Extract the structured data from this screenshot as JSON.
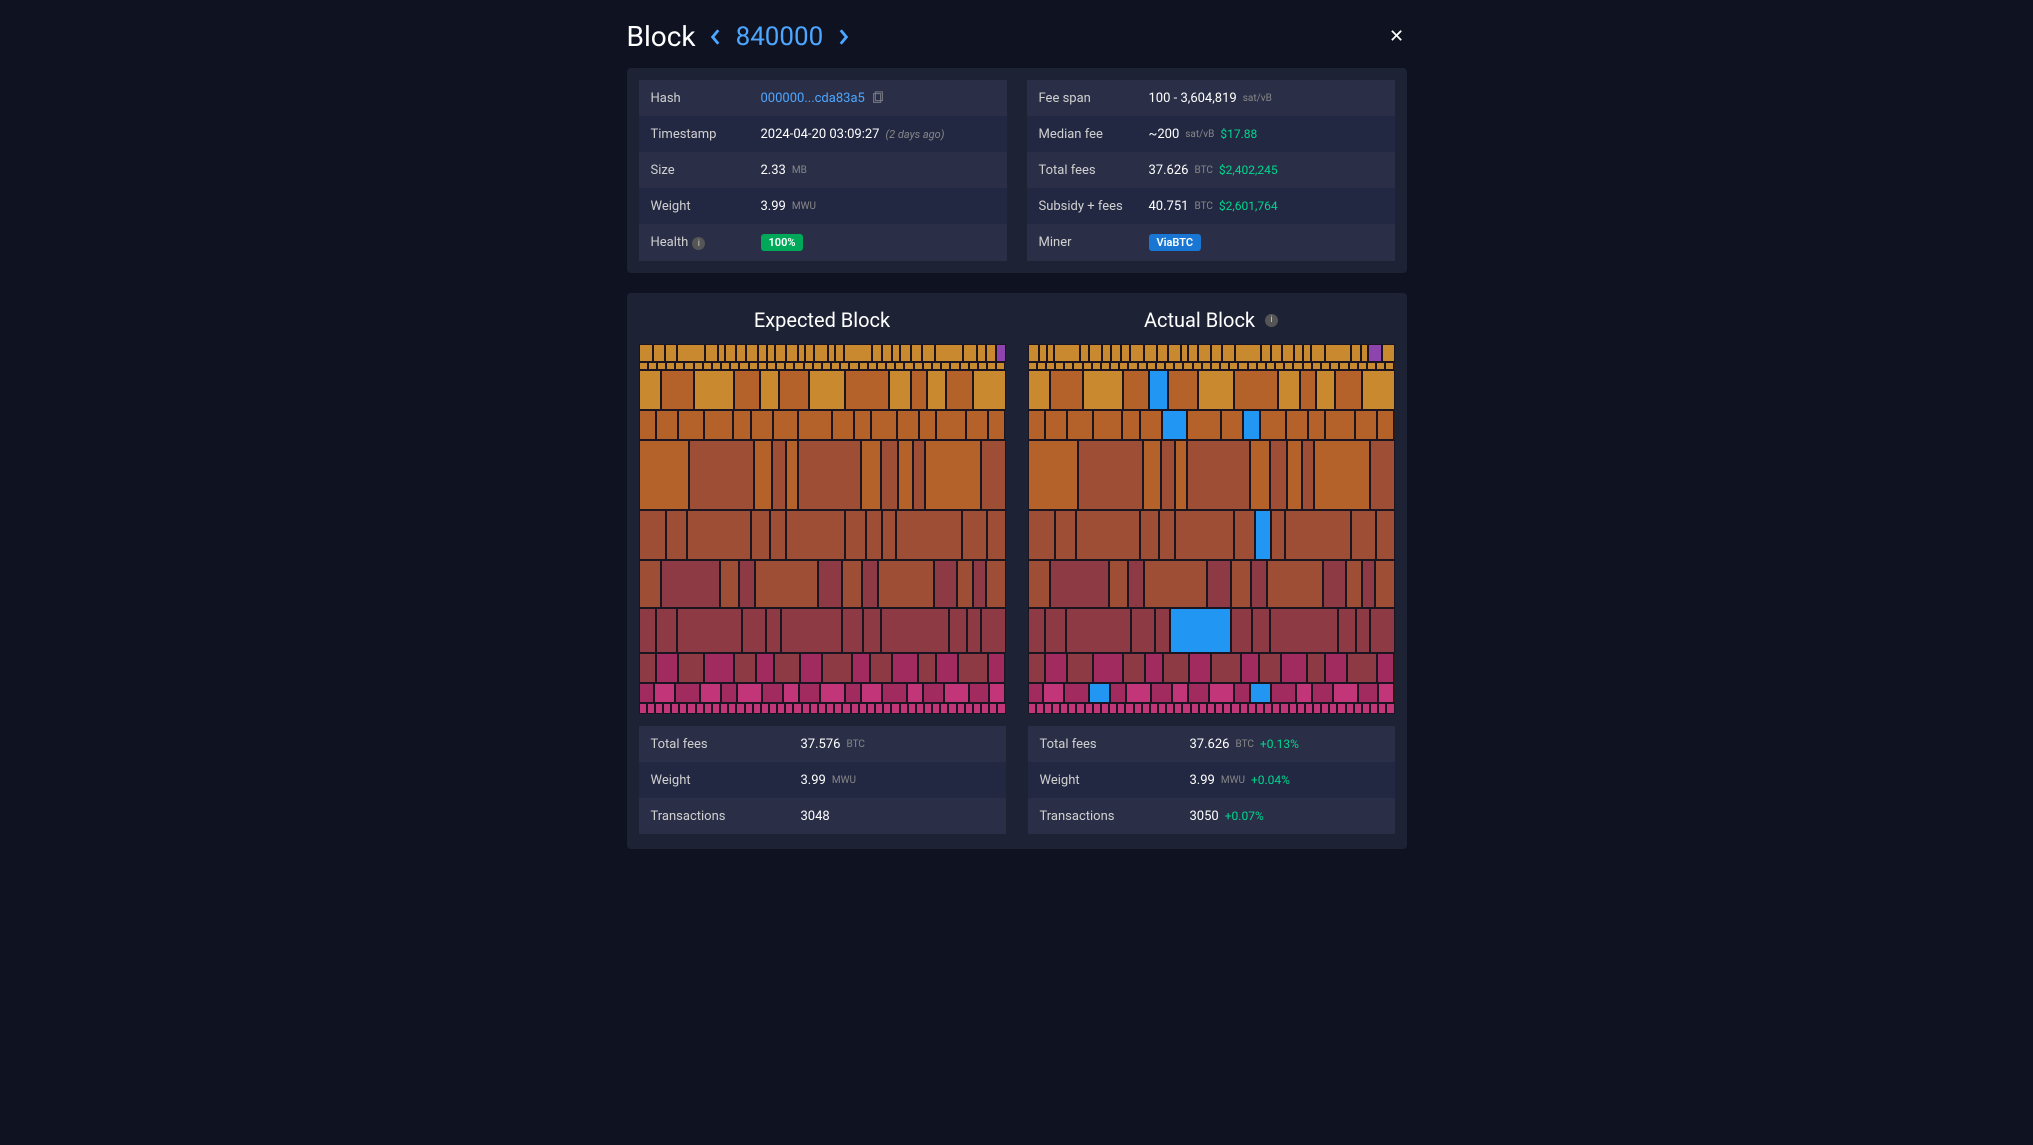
{
  "header": {
    "title": "Block",
    "block_number": "840000"
  },
  "left_info": [
    {
      "label": "Hash",
      "value": "000000...cda83a5",
      "type": "hash"
    },
    {
      "label": "Timestamp",
      "value": "2024-04-20 03:09:27",
      "ago": "(2 days ago)"
    },
    {
      "label": "Size",
      "value": "2.33",
      "unit": "MB"
    },
    {
      "label": "Weight",
      "value": "3.99",
      "unit": "MWU"
    },
    {
      "label": "Health",
      "badge": "100%",
      "badge_type": "health",
      "has_info": true
    }
  ],
  "right_info": [
    {
      "label": "Fee span",
      "value": "100 - 3,604,819",
      "unit": "sat/vB"
    },
    {
      "label": "Median fee",
      "value": "~200",
      "unit": "sat/vB",
      "usd": "$17.88"
    },
    {
      "label": "Total fees",
      "value": "37.626",
      "unit": "BTC",
      "usd": "$2,402,245"
    },
    {
      "label": "Subsidy + fees",
      "value": "40.751",
      "unit": "BTC",
      "usd": "$2,601,764"
    },
    {
      "label": "Miner",
      "badge": "ViaBTC",
      "badge_type": "miner"
    }
  ],
  "viz": {
    "expected_title": "Expected Block",
    "actual_title": "Actual Block",
    "colors": {
      "top": "#c9892f",
      "upper": "#b5622a",
      "mid": "#9d4e35",
      "lower": "#8e3a45",
      "bottom": "#a12a5e",
      "pink": "#c23578",
      "purple": "#8e44ad",
      "blue": "#2196f3",
      "green": "#6a8a2a",
      "border": "#1a1520"
    }
  },
  "expected_stats": [
    {
      "label": "Total fees",
      "value": "37.576",
      "unit": "BTC"
    },
    {
      "label": "Weight",
      "value": "3.99",
      "unit": "MWU"
    },
    {
      "label": "Transactions",
      "value": "3048"
    }
  ],
  "actual_stats": [
    {
      "label": "Total fees",
      "value": "37.626",
      "unit": "BTC",
      "delta": "+0.13%"
    },
    {
      "label": "Weight",
      "value": "3.99",
      "unit": "MWU",
      "delta": "+0.04%"
    },
    {
      "label": "Transactions",
      "value": "3050",
      "delta": "+0.07%"
    }
  ]
}
